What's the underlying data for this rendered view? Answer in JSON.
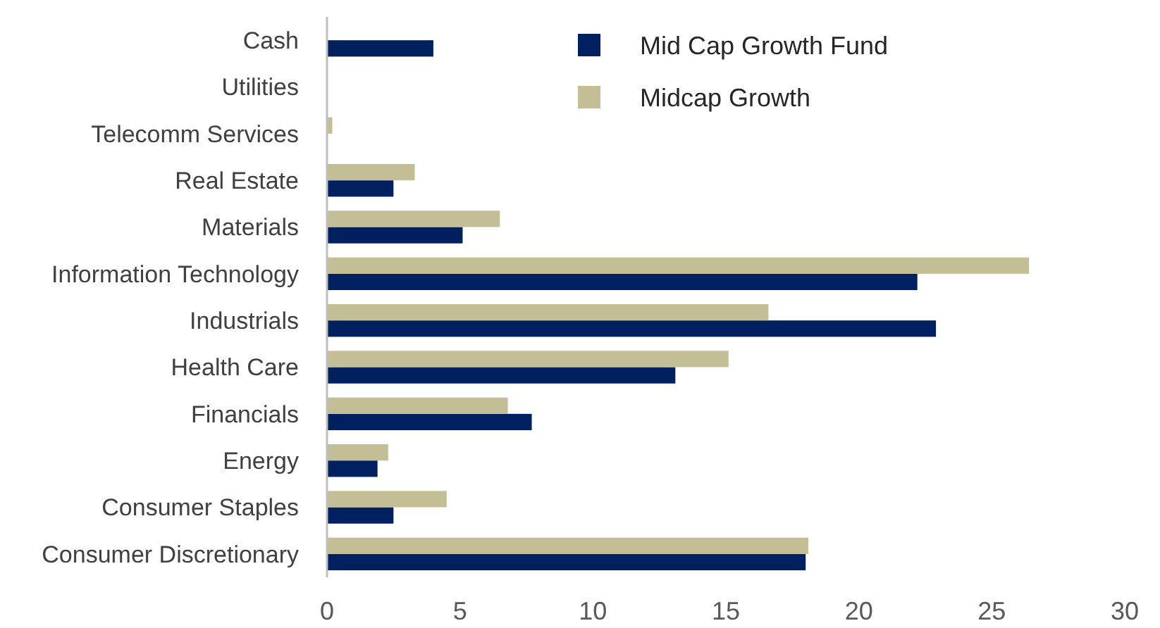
{
  "chart_data": {
    "type": "bar",
    "orientation": "horizontal",
    "categories": [
      "Cash",
      "Utilities",
      "Telecomm Services",
      "Real Estate",
      "Materials",
      "Information Technology",
      "Industrials",
      "Health Care",
      "Financials",
      "Energy",
      "Consumer Staples",
      "Consumer Discretionary"
    ],
    "series": [
      {
        "name": "Mid Cap Growth Fund",
        "color": "#002060",
        "values": [
          4.0,
          0,
          null,
          2.5,
          5.1,
          22.2,
          22.9,
          13.1,
          7.7,
          1.9,
          2.5,
          18.0
        ]
      },
      {
        "name": "Midcap Growth",
        "color": "#c4be97",
        "values": [
          null,
          0,
          0.2,
          3.3,
          6.5,
          26.4,
          16.6,
          15.1,
          6.8,
          2.3,
          4.5,
          18.1
        ]
      }
    ],
    "xlim": [
      0,
      30
    ],
    "xticks": [
      0,
      5,
      10,
      15,
      20,
      25,
      30
    ],
    "grid": false,
    "legend": "top right"
  }
}
